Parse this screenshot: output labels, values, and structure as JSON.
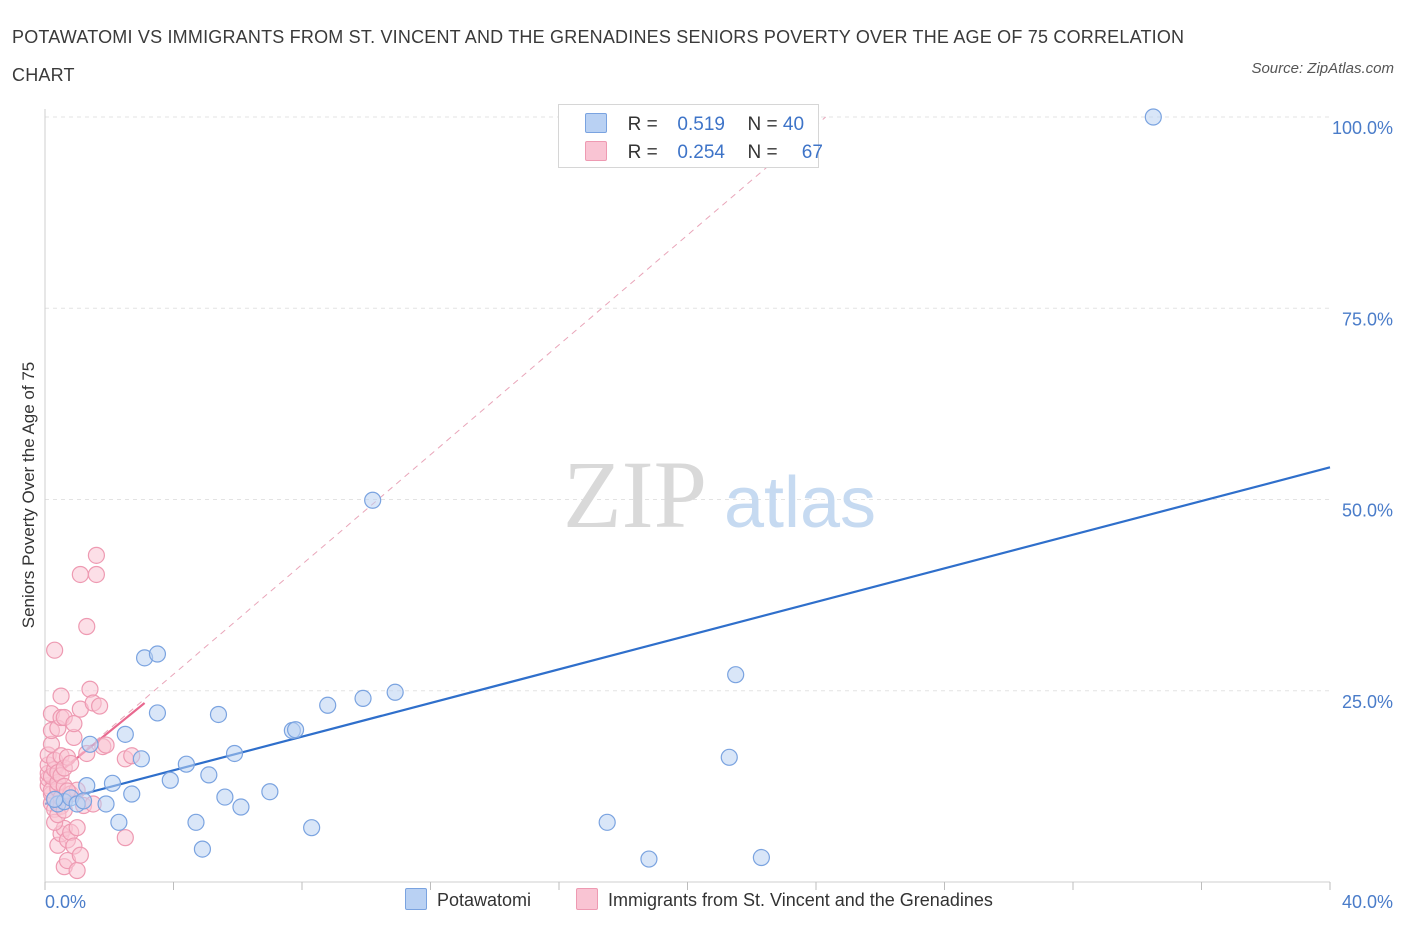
{
  "title": "POTAWATOMI VS IMMIGRANTS FROM ST. VINCENT AND THE GRENADINES SENIORS POVERTY OVER THE AGE OF 75 CORRELATION CHART",
  "source": "Source: ZipAtlas.com",
  "watermark": {
    "zip": "ZIP",
    "atlas": "atlas"
  },
  "legend": {
    "rows": [
      {
        "r_label": "R =",
        "r_value": "0.519",
        "n_label": "N =",
        "n_value": "40",
        "color": "#b9d1f3",
        "border": "#7aa3e0"
      },
      {
        "r_label": "R =",
        "r_value": "0.254",
        "n_label": "N =",
        "n_value": "67",
        "color": "#f9c4d3",
        "border": "#ee9ab2"
      }
    ]
  },
  "chart_data": {
    "type": "scatter",
    "title": "POTAWATOMI VS IMMIGRANTS FROM ST. VINCENT AND THE GRENADINES SENIORS POVERTY OVER THE AGE OF 75 CORRELATION CHART",
    "xlabel": "",
    "ylabel": "Seniors Poverty Over the Age of 75",
    "xlim": [
      0,
      40
    ],
    "ylim": [
      0,
      100
    ],
    "x_tick_labels": [
      "0.0%",
      "40.0%"
    ],
    "y_ticks": [
      25,
      50,
      75,
      100
    ],
    "y_tick_labels": [
      "25.0%",
      "50.0%",
      "75.0%",
      "100.0%"
    ],
    "grid": true,
    "legend_position": "bottom",
    "series": [
      {
        "name": "Potawatomi",
        "color": "#7aa3e0",
        "fill": "#b9d1f3",
        "trend": {
          "x": [
            0,
            40
          ],
          "y": [
            10.2,
            54.2
          ],
          "color": "#2f6fcb"
        },
        "points": [
          [
            0.4,
            10.2
          ],
          [
            0.6,
            10.5
          ],
          [
            0.8,
            11.0
          ],
          [
            1.0,
            10.2
          ],
          [
            1.3,
            12.6
          ],
          [
            1.4,
            18.0
          ],
          [
            1.9,
            10.2
          ],
          [
            2.1,
            12.9
          ],
          [
            2.3,
            7.8
          ],
          [
            2.5,
            19.3
          ],
          [
            2.7,
            11.5
          ],
          [
            3.0,
            16.1
          ],
          [
            3.1,
            29.3
          ],
          [
            3.5,
            29.8
          ],
          [
            3.5,
            22.1
          ],
          [
            3.9,
            13.3
          ],
          [
            4.4,
            15.4
          ],
          [
            4.7,
            7.8
          ],
          [
            4.9,
            4.3
          ],
          [
            5.1,
            14.0
          ],
          [
            5.4,
            21.9
          ],
          [
            5.6,
            11.1
          ],
          [
            5.9,
            16.8
          ],
          [
            6.1,
            9.8
          ],
          [
            7.0,
            11.8
          ],
          [
            7.7,
            19.8
          ],
          [
            7.8,
            19.9
          ],
          [
            8.3,
            7.1
          ],
          [
            8.8,
            23.1
          ],
          [
            9.9,
            24.0
          ],
          [
            10.2,
            49.9
          ],
          [
            10.9,
            24.8
          ],
          [
            17.5,
            7.8
          ],
          [
            18.8,
            3.0
          ],
          [
            21.3,
            16.3
          ],
          [
            21.5,
            27.1
          ],
          [
            22.3,
            3.2
          ],
          [
            34.5,
            100.0
          ],
          [
            0.3,
            10.8
          ],
          [
            1.2,
            10.6
          ]
        ]
      },
      {
        "name": "Immigrants from St. Vincent and the Grenadines",
        "color": "#ee9ab2",
        "fill": "#f9c4d3",
        "trend": {
          "x": [
            0,
            3.1
          ],
          "y": [
            12.8,
            23.4
          ],
          "color": "#e8688f"
        },
        "trend_extended": {
          "x": [
            0,
            24.3
          ],
          "y": [
            12.8,
            100.0
          ],
          "color": "#e9a5b9"
        },
        "points": [
          [
            0.1,
            12.6
          ],
          [
            0.1,
            13.5
          ],
          [
            0.1,
            14.2
          ],
          [
            0.1,
            15.3
          ],
          [
            0.1,
            16.6
          ],
          [
            0.2,
            10.3
          ],
          [
            0.2,
            11.5
          ],
          [
            0.2,
            12.0
          ],
          [
            0.2,
            13.8
          ],
          [
            0.2,
            18.0
          ],
          [
            0.2,
            19.8
          ],
          [
            0.2,
            22.0
          ],
          [
            0.3,
            9.5
          ],
          [
            0.3,
            10.8
          ],
          [
            0.3,
            14.7
          ],
          [
            0.3,
            15.9
          ],
          [
            0.3,
            30.3
          ],
          [
            0.4,
            12.2
          ],
          [
            0.4,
            13.0
          ],
          [
            0.4,
            14.3
          ],
          [
            0.4,
            20.1
          ],
          [
            0.4,
            4.8
          ],
          [
            0.5,
            9.9
          ],
          [
            0.5,
            11.0
          ],
          [
            0.5,
            13.9
          ],
          [
            0.5,
            16.5
          ],
          [
            0.5,
            21.5
          ],
          [
            0.5,
            24.3
          ],
          [
            0.5,
            6.3
          ],
          [
            0.6,
            7.0
          ],
          [
            0.6,
            12.5
          ],
          [
            0.6,
            14.9
          ],
          [
            0.6,
            21.5
          ],
          [
            0.6,
            2.0
          ],
          [
            0.7,
            5.5
          ],
          [
            0.7,
            16.3
          ],
          [
            0.7,
            2.8
          ],
          [
            0.8,
            6.5
          ],
          [
            0.8,
            11.5
          ],
          [
            0.8,
            15.5
          ],
          [
            0.9,
            18.9
          ],
          [
            0.9,
            4.7
          ],
          [
            0.9,
            20.7
          ],
          [
            1.0,
            1.5
          ],
          [
            1.0,
            7.1
          ],
          [
            1.0,
            12.0
          ],
          [
            1.1,
            22.6
          ],
          [
            1.1,
            40.2
          ],
          [
            1.1,
            3.5
          ],
          [
            1.2,
            10.0
          ],
          [
            1.3,
            33.4
          ],
          [
            1.3,
            16.8
          ],
          [
            1.4,
            25.2
          ],
          [
            1.5,
            23.4
          ],
          [
            1.5,
            10.2
          ],
          [
            1.6,
            42.7
          ],
          [
            1.6,
            40.2
          ],
          [
            1.7,
            23.0
          ],
          [
            1.8,
            17.7
          ],
          [
            1.9,
            17.9
          ],
          [
            2.5,
            16.1
          ],
          [
            2.5,
            5.8
          ],
          [
            2.7,
            16.5
          ],
          [
            0.3,
            7.8
          ],
          [
            0.4,
            8.8
          ],
          [
            0.6,
            9.4
          ],
          [
            0.7,
            11.9
          ]
        ]
      }
    ]
  }
}
